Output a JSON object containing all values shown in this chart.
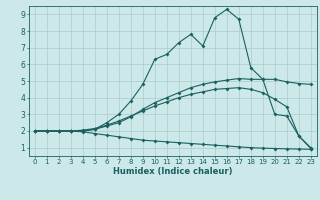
{
  "xlabel": "Humidex (Indice chaleur)",
  "xlim": [
    -0.5,
    23.5
  ],
  "ylim": [
    0.5,
    9.5
  ],
  "xticks": [
    0,
    1,
    2,
    3,
    4,
    5,
    6,
    7,
    8,
    9,
    10,
    11,
    12,
    13,
    14,
    15,
    16,
    17,
    18,
    19,
    20,
    21,
    22,
    23
  ],
  "yticks": [
    1,
    2,
    3,
    4,
    5,
    6,
    7,
    8,
    9
  ],
  "bg_color": "#cce8e8",
  "grid_color": "#aacccc",
  "line_color": "#1a6060",
  "line1_x": [
    0,
    1,
    2,
    3,
    4,
    5,
    6,
    7,
    8,
    9,
    10,
    11,
    12,
    13,
    14,
    15,
    16,
    17,
    18,
    19,
    20,
    21,
    22,
    23
  ],
  "line1_y": [
    2.0,
    2.0,
    2.0,
    2.0,
    2.0,
    2.1,
    2.3,
    2.5,
    2.85,
    3.3,
    3.7,
    4.0,
    4.3,
    4.6,
    4.8,
    4.95,
    5.05,
    5.15,
    5.1,
    5.1,
    5.1,
    4.95,
    4.85,
    4.8
  ],
  "line2_x": [
    0,
    1,
    2,
    3,
    4,
    5,
    6,
    7,
    8,
    9,
    10,
    11,
    12,
    13,
    14,
    15,
    16,
    17,
    18,
    19,
    20,
    21,
    22,
    23
  ],
  "line2_y": [
    2.0,
    2.0,
    2.0,
    2.0,
    2.0,
    2.1,
    2.5,
    3.0,
    3.8,
    4.8,
    6.3,
    6.6,
    7.3,
    7.8,
    7.1,
    8.8,
    9.3,
    8.7,
    5.8,
    5.1,
    3.0,
    2.9,
    1.7,
    0.95
  ],
  "line3_x": [
    0,
    1,
    2,
    3,
    4,
    5,
    6,
    7,
    8,
    9,
    10,
    11,
    12,
    13,
    14,
    15,
    16,
    17,
    18,
    19,
    20,
    21,
    22,
    23
  ],
  "line3_y": [
    2.0,
    2.0,
    2.0,
    2.0,
    1.95,
    1.85,
    1.75,
    1.65,
    1.55,
    1.45,
    1.4,
    1.35,
    1.3,
    1.25,
    1.2,
    1.15,
    1.1,
    1.05,
    1.0,
    0.97,
    0.95,
    0.93,
    0.92,
    0.9
  ],
  "line4_x": [
    0,
    1,
    2,
    3,
    4,
    5,
    6,
    7,
    8,
    9,
    10,
    11,
    12,
    13,
    14,
    15,
    16,
    17,
    18,
    19,
    20,
    21,
    22,
    23
  ],
  "line4_y": [
    2.0,
    2.0,
    2.0,
    2.0,
    2.05,
    2.15,
    2.35,
    2.6,
    2.9,
    3.2,
    3.5,
    3.75,
    4.0,
    4.2,
    4.35,
    4.5,
    4.55,
    4.6,
    4.5,
    4.3,
    3.9,
    3.45,
    1.7,
    1.0
  ],
  "figsize": [
    3.2,
    2.0
  ],
  "dpi": 100
}
